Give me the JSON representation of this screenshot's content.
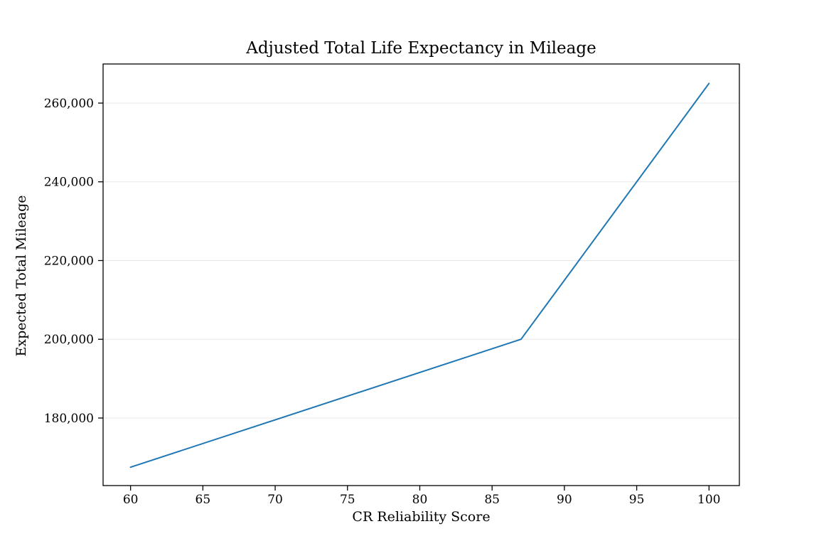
{
  "chart_data": {
    "type": "line",
    "title": "Adjusted Total Life Expectancy in Mileage",
    "xlabel": "CR Reliability Score",
    "ylabel": "Expected Total Mileage",
    "x": [
      60,
      87,
      100
    ],
    "y": [
      167500,
      200000,
      265000
    ],
    "xlim": [
      58.1,
      102.1
    ],
    "ylim": [
      162840,
      269930
    ],
    "xticks": [
      60,
      65,
      70,
      75,
      80,
      85,
      90,
      95,
      100
    ],
    "yticks": [
      180000,
      200000,
      220000,
      240000,
      260000
    ],
    "ytick_format": "comma",
    "grid": "horizontal",
    "legend": "none",
    "line_color": "#1f77b4",
    "grid_color": "#e8e8e8",
    "spine_color": "#000000",
    "background_color": "#ffffff"
  }
}
